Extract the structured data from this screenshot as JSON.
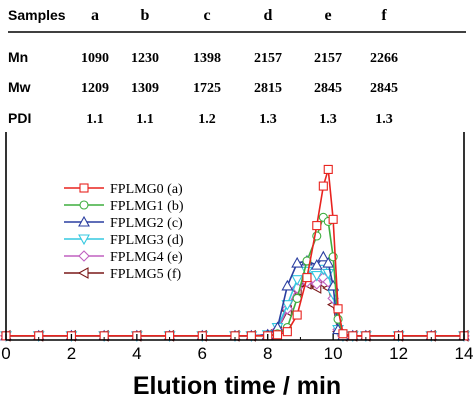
{
  "table": {
    "columns": [
      "Samples",
      "a",
      "b",
      "c",
      "d",
      "e",
      "f"
    ],
    "rows": [
      {
        "label": "Mn",
        "values": [
          "1090",
          "1230",
          "1398",
          "2157",
          "2157",
          "2266"
        ]
      },
      {
        "label": "Mw",
        "values": [
          "1209",
          "1309",
          "1725",
          "2815",
          "2845",
          "2845"
        ]
      },
      {
        "label": "PDI",
        "values": [
          "1.1",
          "1.1",
          "1.2",
          "1.3",
          "1.3",
          "1.3"
        ]
      }
    ]
  },
  "chart_data": {
    "type": "line",
    "xlabel": "Elution time / min",
    "ylabel": "",
    "xlim": [
      0,
      14
    ],
    "xticks": [
      "0",
      "2",
      "4",
      "6",
      "8",
      "10",
      "12",
      "14"
    ],
    "ylim": [
      0,
      1.0
    ],
    "grid": false,
    "legend_position": "middle-left",
    "x": [
      0,
      1,
      2,
      3,
      4,
      5,
      6,
      7,
      7.5,
      8,
      8.3,
      8.6,
      8.9,
      9.2,
      9.5,
      9.7,
      9.85,
      10.0,
      10.15,
      10.3,
      10.6,
      11,
      12,
      13,
      14
    ],
    "series": [
      {
        "name": "FPLMG0 (a)",
        "color": "#e8231f",
        "marker": "square",
        "values": [
          0.02,
          0.02,
          0.02,
          0.02,
          0.02,
          0.02,
          0.02,
          0.02,
          0.02,
          0.02,
          0.025,
          0.04,
          0.12,
          0.3,
          0.55,
          0.74,
          0.82,
          0.58,
          0.15,
          0.03,
          0.02,
          0.02,
          0.02,
          0.02,
          0.02
        ]
      },
      {
        "name": "FPLMG1 (b)",
        "color": "#3fae3f",
        "marker": "circle",
        "values": [
          0.02,
          0.02,
          0.02,
          0.02,
          0.02,
          0.02,
          0.02,
          0.02,
          0.02,
          0.02,
          0.03,
          0.06,
          0.2,
          0.38,
          0.5,
          0.59,
          0.57,
          0.4,
          0.1,
          0.03,
          0.02,
          0.02,
          0.02,
          0.02,
          0.02
        ]
      },
      {
        "name": "FPLMG2 (c)",
        "color": "#2a3ea0",
        "marker": "triangle-up",
        "values": [
          0.02,
          0.02,
          0.02,
          0.02,
          0.02,
          0.02,
          0.02,
          0.02,
          0.02,
          0.025,
          0.06,
          0.26,
          0.37,
          0.38,
          0.36,
          0.4,
          0.37,
          0.26,
          0.05,
          0.02,
          0.02,
          0.02,
          0.02,
          0.02,
          0.02
        ]
      },
      {
        "name": "FPLMG3 (d)",
        "color": "#35c8e0",
        "marker": "triangle-down",
        "values": [
          0.02,
          0.02,
          0.02,
          0.02,
          0.02,
          0.02,
          0.02,
          0.02,
          0.02,
          0.025,
          0.06,
          0.17,
          0.29,
          0.33,
          0.31,
          0.34,
          0.32,
          0.22,
          0.05,
          0.02,
          0.02,
          0.02,
          0.02,
          0.02,
          0.02
        ]
      },
      {
        "name": "FPLMG4 (e)",
        "color": "#c060c0",
        "marker": "diamond",
        "values": [
          0.02,
          0.02,
          0.02,
          0.02,
          0.02,
          0.02,
          0.02,
          0.02,
          0.02,
          0.025,
          0.05,
          0.15,
          0.25,
          0.28,
          0.27,
          0.3,
          0.28,
          0.2,
          0.05,
          0.02,
          0.02,
          0.02,
          0.02,
          0.02,
          0.02
        ]
      },
      {
        "name": "FPLMG5 (f)",
        "color": "#7a1818",
        "marker": "triangle-left",
        "values": [
          0.02,
          0.02,
          0.02,
          0.02,
          0.02,
          0.02,
          0.02,
          0.02,
          0.02,
          0.025,
          0.05,
          0.14,
          0.24,
          0.27,
          0.25,
          0.27,
          0.25,
          0.17,
          0.04,
          0.02,
          0.02,
          0.02,
          0.02,
          0.02,
          0.02
        ]
      }
    ]
  }
}
